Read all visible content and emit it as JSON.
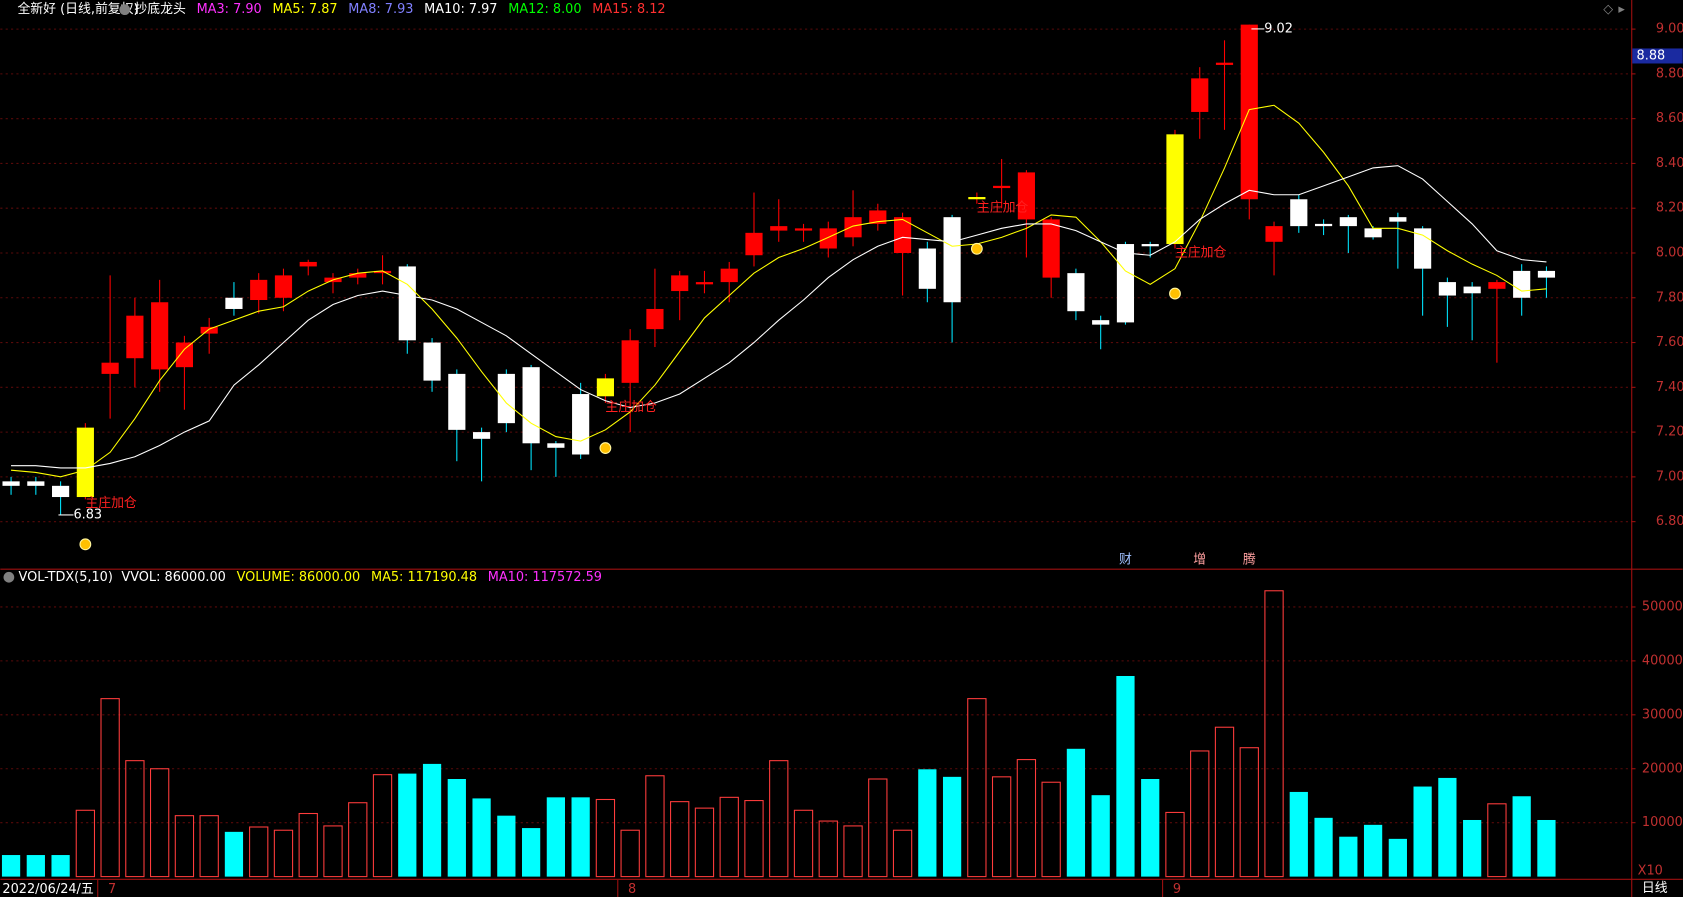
{
  "chart_data": {
    "type": "candlestick",
    "title": "全新好 (日线,前复权)",
    "indicator": "抄底龙头",
    "legend": [
      {
        "label": "MA3: 7.90",
        "color": "#ff30ff"
      },
      {
        "label": "MA5: 7.87",
        "color": "#ffff00"
      },
      {
        "label": "MA8: 7.93",
        "color": "#8080ff"
      },
      {
        "label": "MA10: 7.97",
        "color": "#ffffff"
      },
      {
        "label": "MA12: 8.00",
        "color": "#00ff00"
      },
      {
        "label": "MA15: 8.12",
        "color": "#ff3030"
      }
    ],
    "categories": [
      "2022/06/24/五",
      null,
      null,
      null,
      "7",
      null,
      null,
      null,
      null,
      null,
      null,
      null,
      null,
      null,
      null,
      null,
      null,
      null,
      null,
      null,
      null,
      null,
      null,
      null,
      null,
      "8",
      null,
      null,
      null,
      null,
      null,
      null,
      null,
      null,
      null,
      null,
      null,
      null,
      null,
      null,
      null,
      null,
      null,
      null,
      null,
      null,
      null,
      "9",
      null,
      null,
      null,
      null,
      null,
      null,
      null,
      null,
      null,
      null,
      null,
      null,
      null,
      null,
      null
    ],
    "open": [
      6.98,
      6.98,
      6.96,
      6.91,
      7.46,
      7.53,
      7.48,
      7.49,
      7.64,
      7.8,
      7.79,
      7.8,
      7.94,
      7.87,
      7.89,
      7.91,
      7.94,
      7.6,
      7.46,
      7.2,
      7.46,
      7.49,
      7.15,
      7.37,
      7.36,
      7.42,
      7.66,
      7.83,
      7.86,
      7.87,
      7.99,
      8.1,
      8.1,
      8.02,
      8.07,
      8.13,
      8.0,
      8.02,
      8.16,
      8.24,
      8.29,
      8.15,
      7.89,
      7.91,
      7.7,
      8.04,
      8.04,
      8.04,
      8.63,
      8.84,
      8.24,
      8.05,
      8.24,
      8.13,
      8.16,
      8.11,
      8.16,
      8.11,
      7.87,
      7.85,
      7.84,
      7.92,
      7.92
    ],
    "high": [
      7.0,
      7.0,
      6.98,
      7.24,
      7.9,
      7.8,
      7.88,
      7.63,
      7.71,
      7.87,
      7.91,
      7.93,
      7.97,
      7.91,
      7.93,
      7.99,
      7.95,
      7.62,
      7.48,
      7.22,
      7.48,
      7.5,
      7.16,
      7.42,
      7.46,
      7.66,
      7.93,
      7.92,
      7.92,
      7.96,
      8.27,
      8.24,
      8.13,
      8.14,
      8.28,
      8.22,
      8.18,
      8.05,
      8.17,
      8.27,
      8.42,
      8.37,
      8.16,
      7.93,
      7.72,
      8.05,
      8.05,
      8.55,
      8.83,
      8.95,
      9.02,
      8.14,
      8.26,
      8.15,
      8.17,
      8.12,
      8.18,
      8.12,
      7.89,
      7.87,
      7.88,
      7.95,
      7.94
    ],
    "low": [
      6.92,
      6.92,
      6.83,
      6.9,
      7.26,
      7.4,
      7.38,
      7.3,
      7.55,
      7.72,
      7.73,
      7.74,
      7.9,
      7.82,
      7.86,
      7.86,
      7.55,
      7.38,
      7.07,
      6.98,
      7.2,
      7.03,
      7.0,
      7.08,
      7.33,
      7.2,
      7.58,
      7.7,
      7.82,
      7.78,
      7.94,
      8.05,
      8.05,
      7.98,
      8.03,
      8.1,
      7.81,
      7.78,
      7.6,
      8.22,
      8.2,
      7.98,
      7.8,
      7.7,
      7.57,
      7.68,
      7.98,
      8.02,
      8.51,
      8.55,
      8.15,
      7.9,
      8.09,
      8.08,
      8.0,
      8.06,
      7.93,
      7.72,
      7.67,
      7.61,
      7.51,
      7.72,
      7.8
    ],
    "close": [
      6.96,
      6.96,
      6.91,
      7.22,
      7.51,
      7.72,
      7.78,
      7.6,
      7.67,
      7.75,
      7.88,
      7.9,
      7.96,
      7.89,
      7.91,
      7.92,
      7.61,
      7.43,
      7.21,
      7.17,
      7.24,
      7.15,
      7.13,
      7.1,
      7.44,
      7.61,
      7.75,
      7.9,
      7.87,
      7.93,
      8.09,
      8.12,
      8.11,
      8.11,
      8.16,
      8.19,
      8.16,
      7.84,
      7.78,
      8.25,
      8.3,
      8.36,
      8.15,
      7.74,
      7.68,
      7.69,
      8.03,
      8.53,
      8.78,
      8.85,
      9.02,
      8.12,
      8.12,
      8.12,
      8.12,
      8.07,
      8.14,
      7.93,
      7.81,
      7.82,
      7.87,
      7.8,
      7.89
    ],
    "up_color": "#ff0000",
    "down_color": "#ffffff",
    "highlight_color": "#ffff00",
    "highlight": [
      3,
      24,
      39,
      47
    ],
    "lines": [
      {
        "color": "#ffff00",
        "values": [
          7.03,
          7.02,
          7.0,
          7.03,
          7.11,
          7.26,
          7.43,
          7.57,
          7.66,
          7.7,
          7.74,
          7.76,
          7.83,
          7.88,
          7.91,
          7.92,
          7.86,
          7.75,
          7.62,
          7.47,
          7.33,
          7.24,
          7.18,
          7.16,
          7.21,
          7.29,
          7.41,
          7.56,
          7.71,
          7.81,
          7.91,
          7.98,
          8.02,
          8.07,
          8.12,
          8.14,
          8.15,
          8.09,
          8.03,
          8.04,
          8.07,
          8.11,
          8.17,
          8.16,
          8.05,
          7.92,
          7.86,
          7.93,
          8.14,
          8.38,
          8.64,
          8.66,
          8.58,
          8.45,
          8.3,
          8.11,
          8.11,
          8.08,
          8.01,
          7.95,
          7.9,
          7.83,
          7.84
        ]
      },
      {
        "color": "#ffffff",
        "values": [
          7.05,
          7.05,
          7.04,
          7.04,
          7.06,
          7.09,
          7.14,
          7.2,
          7.25,
          7.41,
          7.5,
          7.6,
          7.7,
          7.77,
          7.81,
          7.83,
          7.81,
          7.79,
          7.75,
          7.69,
          7.63,
          7.55,
          7.47,
          7.39,
          7.34,
          7.31,
          7.33,
          7.37,
          7.44,
          7.51,
          7.6,
          7.7,
          7.79,
          7.89,
          7.97,
          8.03,
          8.07,
          8.06,
          8.05,
          8.08,
          8.11,
          8.13,
          8.13,
          8.1,
          8.05,
          8.0,
          7.99,
          8.05,
          8.15,
          8.22,
          8.28,
          8.26,
          8.26,
          8.3,
          8.34,
          8.38,
          8.39,
          8.33,
          8.23,
          8.13,
          8.01,
          7.97,
          7.96
        ]
      }
    ],
    "signals": [
      {
        "index": 3,
        "label": "主庄加仓"
      },
      {
        "index": 24,
        "label": "主庄加仓"
      },
      {
        "index": 39,
        "label": "主庄加仓"
      },
      {
        "index": 47,
        "label": "主庄加仓"
      }
    ],
    "events": [
      {
        "index": 45,
        "label": "财"
      },
      {
        "index": 48,
        "label": "增"
      },
      {
        "index": 50,
        "label": "腾"
      }
    ],
    "max_label": {
      "index": 50,
      "value": 9.02
    },
    "min_label": {
      "index": 2,
      "value": 6.83
    },
    "last_price": 8.88,
    "ylim": [
      6.59,
      9.13
    ],
    "yticks": [
      {
        "value": 6.8,
        "label": "6.80"
      },
      {
        "value": 7.0,
        "label": "7.00"
      },
      {
        "value": 7.2,
        "label": "7.20"
      },
      {
        "value": 7.4,
        "label": "7.40"
      },
      {
        "value": 7.6,
        "label": "7.60"
      },
      {
        "value": 7.8,
        "label": "7.80"
      },
      {
        "value": 8.0,
        "label": "8.00"
      },
      {
        "value": 8.2,
        "label": "8.20"
      },
      {
        "value": 8.4,
        "label": "8.40"
      },
      {
        "value": 8.6,
        "label": "8.60"
      },
      {
        "value": 8.8,
        "label": "8.80"
      },
      {
        "value": 9.0,
        "label": "9.00"
      }
    ],
    "grid": true,
    "volume": {
      "title": "VOL-TDX(5,10)",
      "legend": [
        {
          "label": "VVOL: 86000.00",
          "color": "#ffffff"
        },
        {
          "label": "VOLUME: 86000.00",
          "color": "#ffff00"
        },
        {
          "label": "MA5: 117190.48",
          "color": "#ffff00"
        },
        {
          "label": "MA10: 117572.59",
          "color": "#ff30ff"
        }
      ],
      "values": [
        4000,
        4000,
        4000,
        12300,
        33000,
        21500,
        20000,
        11300,
        11300,
        8300,
        9200,
        8600,
        11700,
        9400,
        13700,
        18900,
        19100,
        20900,
        18100,
        14500,
        11300,
        9000,
        14700,
        14700,
        14300,
        8600,
        18700,
        13900,
        12700,
        14700,
        14100,
        21500,
        12300,
        10300,
        9400,
        18100,
        8600,
        19900,
        18500,
        33000,
        18500,
        21700,
        17500,
        23700,
        15100,
        37200,
        18100,
        11900,
        23300,
        27700,
        23900,
        53000,
        15700,
        10900,
        7400,
        9600,
        7000,
        16700,
        18300,
        10500,
        13500,
        14900,
        10500
      ],
      "up_color": "#ff3c3c",
      "down_color": "#00ffff",
      "ylim": [
        0,
        56900
      ],
      "yticks": [
        10000,
        20000,
        30000,
        40000,
        50000
      ],
      "unit": "X10"
    },
    "period": "日线"
  }
}
